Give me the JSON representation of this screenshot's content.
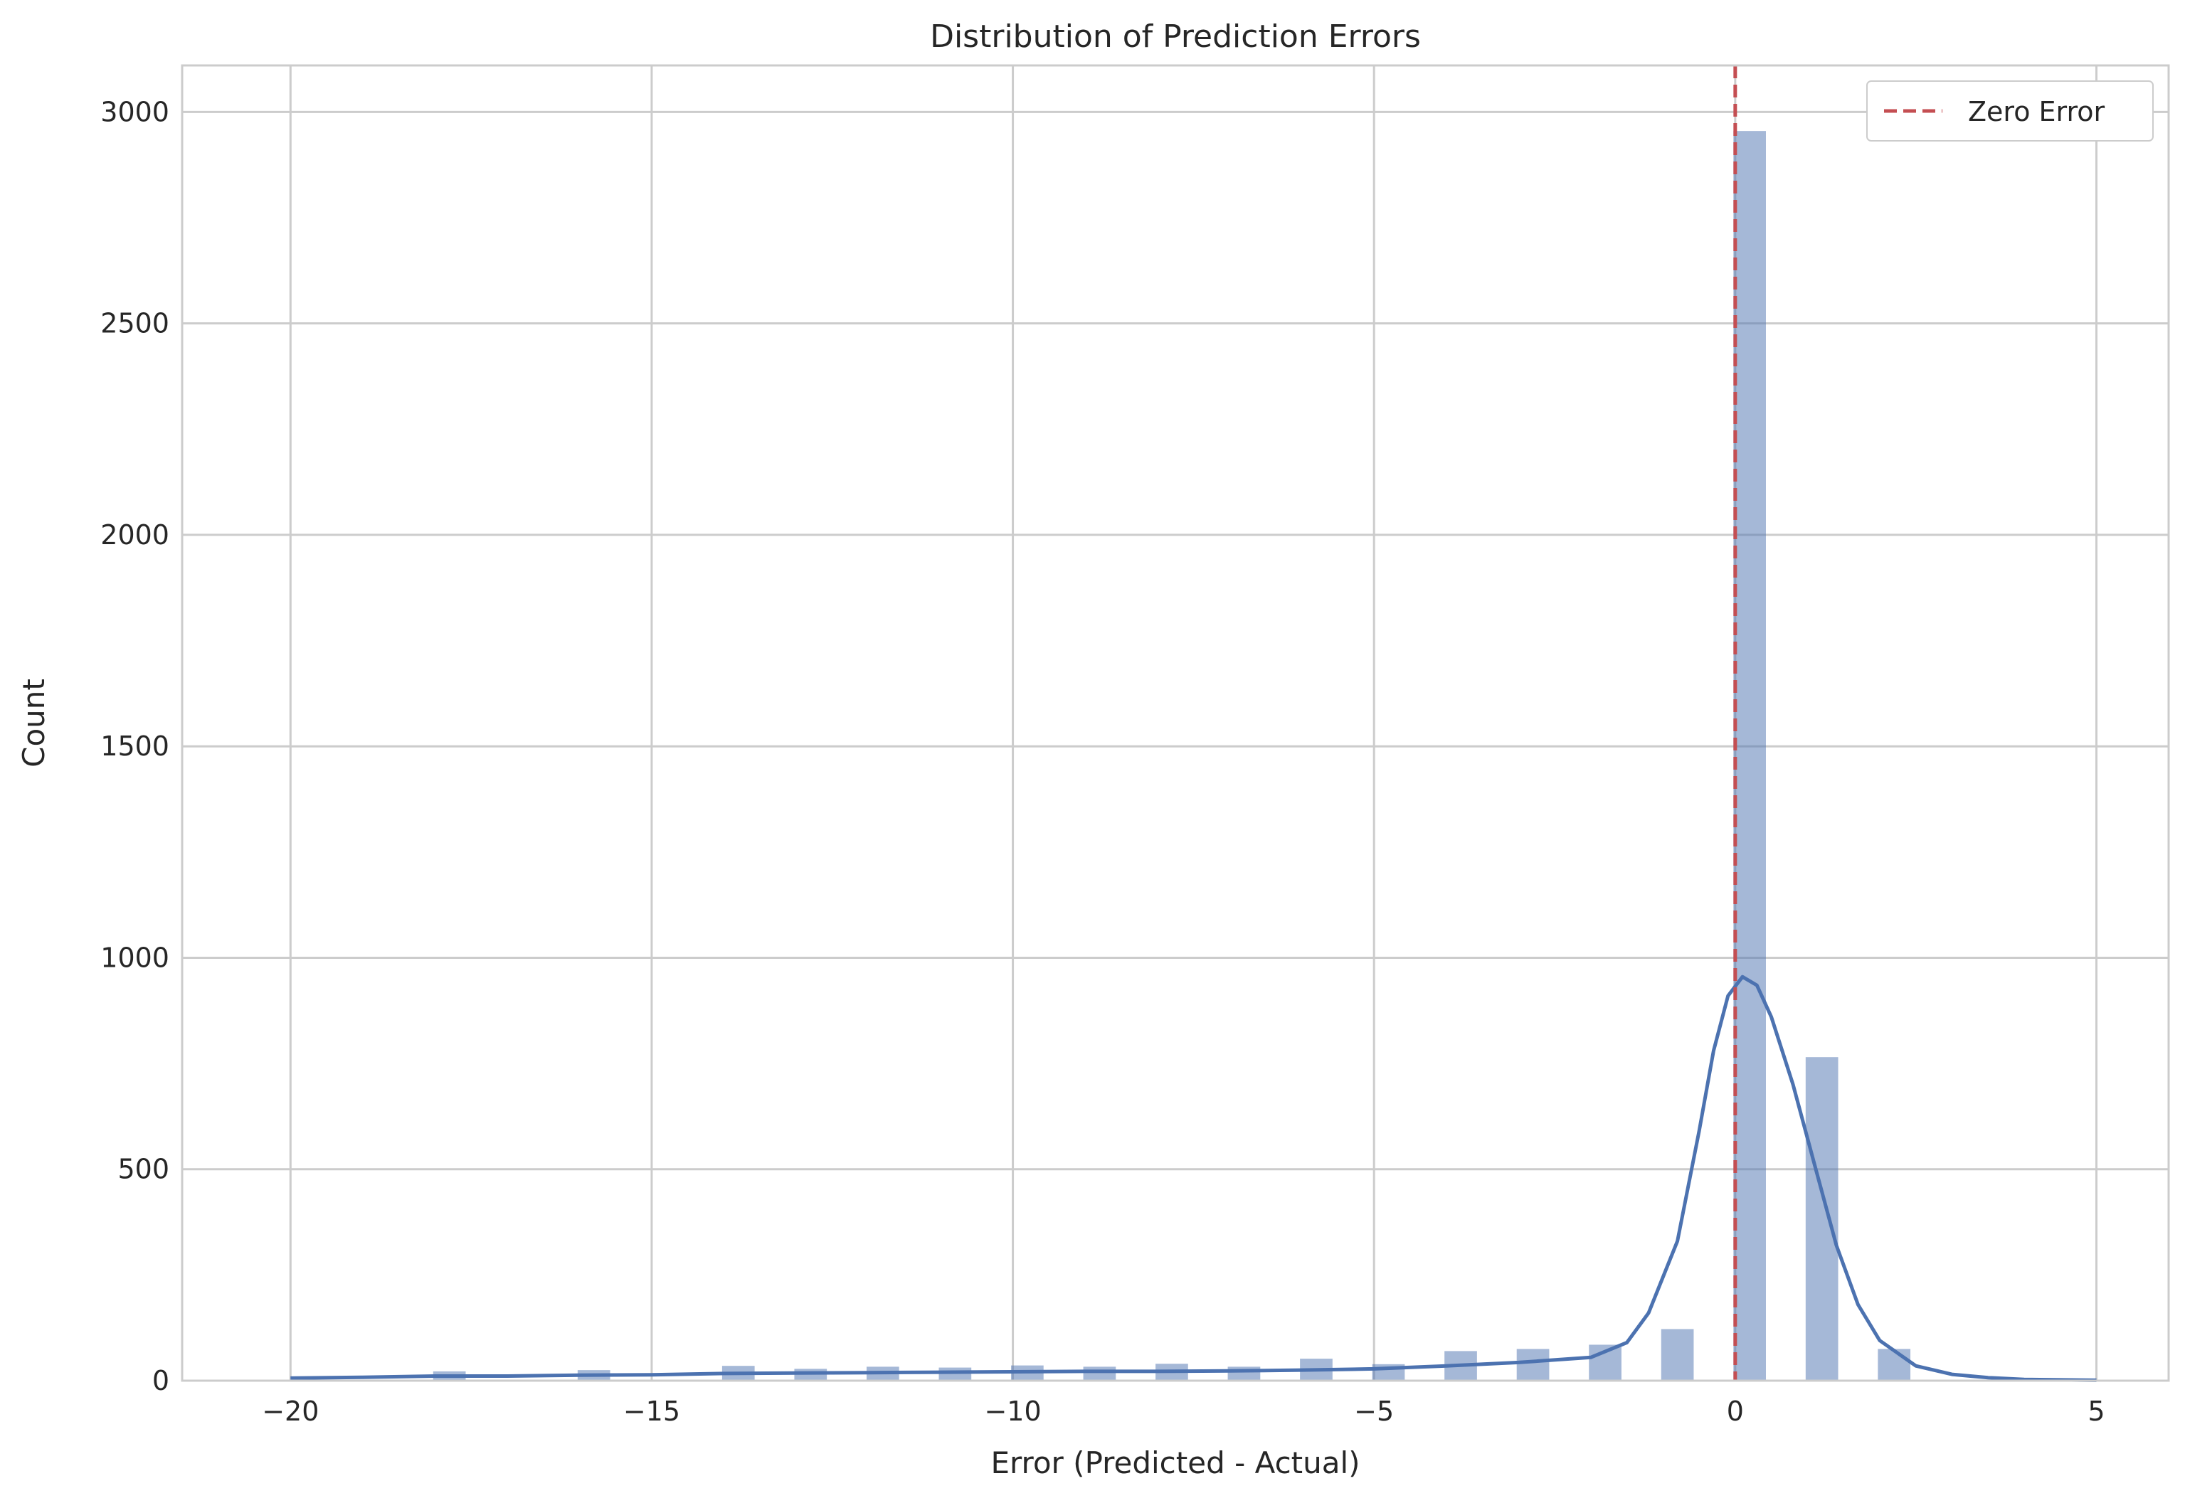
{
  "chart_data": {
    "type": "bar",
    "title": "Distribution of Prediction Errors",
    "xlabel": "Error (Predicted - Actual)",
    "ylabel": "Count",
    "xlim": [
      -21.5,
      6.0
    ],
    "ylim": [
      0,
      3110
    ],
    "xticks": [
      -20,
      -15,
      -10,
      -5,
      0,
      5
    ],
    "xtick_labels": [
      "−20",
      "−15",
      "−10",
      "−5",
      "0",
      "5"
    ],
    "yticks": [
      0,
      500,
      1000,
      1500,
      2000,
      2500,
      3000
    ],
    "ytick_labels": [
      "0",
      "500",
      "1000",
      "1500",
      "2000",
      "2500",
      "3000"
    ],
    "grid": true,
    "legend_position": "top-right",
    "bar_color": "#4c72b0",
    "bins": [
      {
        "x": -17.8,
        "count": 22
      },
      {
        "x": -15.8,
        "count": 25
      },
      {
        "x": -13.8,
        "count": 35
      },
      {
        "x": -12.8,
        "count": 28
      },
      {
        "x": -11.8,
        "count": 33
      },
      {
        "x": -10.8,
        "count": 31
      },
      {
        "x": -9.8,
        "count": 36
      },
      {
        "x": -8.8,
        "count": 33
      },
      {
        "x": -7.8,
        "count": 40
      },
      {
        "x": -6.8,
        "count": 33
      },
      {
        "x": -5.8,
        "count": 52
      },
      {
        "x": -4.8,
        "count": 39
      },
      {
        "x": -3.8,
        "count": 70
      },
      {
        "x": -2.8,
        "count": 75
      },
      {
        "x": -1.8,
        "count": 85
      },
      {
        "x": -0.8,
        "count": 122
      },
      {
        "x": 0.2,
        "count": 2955
      },
      {
        "x": 1.2,
        "count": 765
      },
      {
        "x": 2.2,
        "count": 75
      }
    ],
    "bin_width": 0.45,
    "kde": {
      "name": "kde",
      "color": "#4c72b0",
      "points": [
        [
          -20,
          6
        ],
        [
          -19,
          8
        ],
        [
          -18,
          11
        ],
        [
          -17,
          11
        ],
        [
          -16,
          13
        ],
        [
          -15,
          14
        ],
        [
          -14,
          17
        ],
        [
          -13,
          18
        ],
        [
          -12,
          19
        ],
        [
          -11,
          20
        ],
        [
          -10,
          21
        ],
        [
          -9,
          22
        ],
        [
          -8,
          22
        ],
        [
          -7,
          23
        ],
        [
          -6,
          25
        ],
        [
          -5,
          28
        ],
        [
          -4,
          35
        ],
        [
          -3,
          43
        ],
        [
          -2,
          55
        ],
        [
          -1.5,
          90
        ],
        [
          -1.2,
          160
        ],
        [
          -0.8,
          330
        ],
        [
          -0.5,
          590
        ],
        [
          -0.3,
          780
        ],
        [
          -0.1,
          910
        ],
        [
          0.1,
          955
        ],
        [
          0.3,
          935
        ],
        [
          0.5,
          860
        ],
        [
          0.8,
          700
        ],
        [
          1.1,
          510
        ],
        [
          1.4,
          320
        ],
        [
          1.7,
          180
        ],
        [
          2.0,
          95
        ],
        [
          2.5,
          35
        ],
        [
          3.0,
          15
        ],
        [
          3.5,
          7
        ],
        [
          4.0,
          3
        ],
        [
          5.0,
          1
        ]
      ]
    },
    "reference_line": {
      "x": 0,
      "name": "Zero Error",
      "color": "#c44e52"
    }
  }
}
